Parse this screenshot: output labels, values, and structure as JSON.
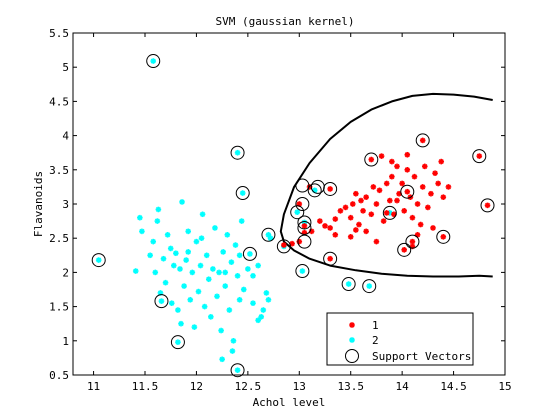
{
  "chart_data": {
    "type": "scatter",
    "title": "SVM (gaussian kernel)",
    "xlabel": "Achol level",
    "ylabel": "Flavanoids",
    "xlim": [
      10.8,
      15
    ],
    "ylim": [
      0.5,
      5.5
    ],
    "xticks": [
      "11",
      "11.5",
      "12",
      "12.5",
      "13",
      "13.5",
      "14",
      "14.5",
      "15"
    ],
    "yticks": [
      "0.5",
      "1",
      "1.5",
      "2",
      "2.5",
      "3",
      "3.5",
      "4",
      "4.5",
      "5",
      "5.5"
    ],
    "grid": false,
    "legend_position": "bottom-right",
    "legend": [
      "1",
      "2",
      "Support Vectors"
    ],
    "colors": {
      "class1": "#ff0000",
      "class2": "#00ffff",
      "boundary": "#000000"
    },
    "series": [
      {
        "name": "1",
        "marker": "star",
        "points": [
          [
            12.85,
            2.4
          ],
          [
            12.93,
            2.42
          ],
          [
            13.0,
            2.45
          ],
          [
            13.05,
            2.58
          ],
          [
            13.12,
            2.6
          ],
          [
            13.2,
            2.75
          ],
          [
            13.25,
            2.68
          ],
          [
            13.3,
            2.65
          ],
          [
            13.35,
            2.78
          ],
          [
            13.4,
            2.9
          ],
          [
            13.45,
            2.95
          ],
          [
            13.5,
            2.8
          ],
          [
            13.52,
            3.0
          ],
          [
            13.55,
            2.62
          ],
          [
            13.58,
            2.7
          ],
          [
            13.6,
            3.05
          ],
          [
            13.62,
            2.9
          ],
          [
            13.65,
            3.1
          ],
          [
            13.7,
            2.85
          ],
          [
            13.72,
            3.25
          ],
          [
            13.75,
            3.0
          ],
          [
            13.78,
            3.2
          ],
          [
            13.8,
            3.7
          ],
          [
            13.82,
            2.75
          ],
          [
            13.85,
            3.3
          ],
          [
            13.88,
            3.05
          ],
          [
            13.9,
            3.4
          ],
          [
            13.92,
            2.85
          ],
          [
            13.95,
            3.55
          ],
          [
            13.97,
            3.15
          ],
          [
            14.0,
            3.3
          ],
          [
            14.02,
            2.9
          ],
          [
            14.05,
            3.5
          ],
          [
            14.08,
            3.1
          ],
          [
            14.1,
            2.8
          ],
          [
            14.12,
            3.4
          ],
          [
            14.15,
            3.0
          ],
          [
            14.18,
            2.7
          ],
          [
            14.2,
            3.25
          ],
          [
            14.22,
            3.55
          ],
          [
            14.25,
            2.95
          ],
          [
            14.28,
            3.15
          ],
          [
            14.32,
            3.45
          ],
          [
            14.35,
            3.3
          ],
          [
            14.38,
            3.62
          ],
          [
            14.4,
            3.1
          ],
          [
            14.1,
            2.38
          ],
          [
            14.15,
            2.55
          ],
          [
            14.3,
            2.65
          ],
          [
            13.1,
            3.25
          ],
          [
            13.3,
            3.22
          ],
          [
            13.55,
            3.15
          ],
          [
            13.95,
            3.05
          ],
          [
            13.35,
            2.55
          ],
          [
            13.5,
            2.52
          ],
          [
            13.65,
            2.6
          ],
          [
            13.75,
            2.45
          ],
          [
            14.45,
            3.25
          ],
          [
            13.9,
            3.62
          ],
          [
            14.05,
            3.72
          ],
          [
            13.0,
            3.0
          ],
          [
            13.05,
            2.68
          ],
          [
            13.3,
            2.2
          ],
          [
            13.7,
            3.65
          ],
          [
            13.85,
            2.87
          ],
          [
            14.2,
            3.93
          ],
          [
            14.75,
            3.7
          ],
          [
            14.83,
            2.98
          ],
          [
            14.4,
            2.52
          ],
          [
            14.05,
            3.18
          ],
          [
            14.02,
            2.33
          ],
          [
            14.1,
            2.45
          ]
        ]
      },
      {
        "name": "2",
        "marker": "star",
        "points": [
          [
            11.41,
            2.02
          ],
          [
            11.45,
            2.8
          ],
          [
            11.47,
            2.6
          ],
          [
            11.55,
            2.25
          ],
          [
            11.58,
            2.45
          ],
          [
            11.6,
            2.0
          ],
          [
            11.62,
            2.75
          ],
          [
            11.63,
            2.92
          ],
          [
            11.65,
            1.7
          ],
          [
            11.68,
            2.2
          ],
          [
            11.7,
            1.85
          ],
          [
            11.72,
            2.55
          ],
          [
            11.75,
            2.35
          ],
          [
            11.76,
            1.55
          ],
          [
            11.78,
            2.1
          ],
          [
            11.8,
            2.28
          ],
          [
            11.82,
            1.45
          ],
          [
            11.84,
            2.05
          ],
          [
            11.85,
            1.25
          ],
          [
            11.86,
            3.03
          ],
          [
            11.88,
            1.8
          ],
          [
            11.9,
            2.18
          ],
          [
            11.92,
            2.6
          ],
          [
            11.94,
            1.6
          ],
          [
            11.96,
            2.0
          ],
          [
            11.98,
            1.2
          ],
          [
            12.0,
            2.45
          ],
          [
            12.02,
            1.72
          ],
          [
            12.04,
            2.1
          ],
          [
            12.06,
            2.85
          ],
          [
            12.08,
            1.5
          ],
          [
            12.1,
            2.25
          ],
          [
            12.12,
            1.9
          ],
          [
            12.14,
            1.35
          ],
          [
            12.16,
            2.05
          ],
          [
            12.18,
            2.65
          ],
          [
            12.2,
            1.65
          ],
          [
            12.22,
            2.0
          ],
          [
            12.24,
            1.15
          ],
          [
            12.26,
            2.3
          ],
          [
            12.28,
            1.8
          ],
          [
            12.3,
            2.55
          ],
          [
            12.32,
            1.45
          ],
          [
            12.34,
            2.15
          ],
          [
            12.36,
            1.0
          ],
          [
            12.38,
            2.4
          ],
          [
            12.4,
            1.95
          ],
          [
            12.42,
            1.6
          ],
          [
            12.44,
            2.75
          ],
          [
            12.46,
            1.75
          ],
          [
            12.5,
            2.05
          ],
          [
            12.55,
            1.55
          ],
          [
            12.6,
            1.3
          ],
          [
            12.63,
            1.35
          ],
          [
            12.65,
            1.45
          ],
          [
            12.68,
            1.7
          ],
          [
            12.7,
            1.6
          ],
          [
            12.72,
            2.5
          ],
          [
            12.28,
            2.0
          ],
          [
            12.05,
            2.5
          ],
          [
            11.92,
            2.3
          ],
          [
            12.25,
            0.73
          ],
          [
            12.35,
            0.85
          ],
          [
            12.42,
            2.25
          ],
          [
            12.55,
            1.95
          ],
          [
            12.6,
            2.1
          ],
          [
            11.05,
            2.18
          ],
          [
            11.58,
            5.09
          ],
          [
            11.66,
            1.58
          ],
          [
            11.82,
            0.98
          ],
          [
            12.4,
            0.57
          ],
          [
            12.4,
            3.75
          ],
          [
            12.45,
            3.16
          ],
          [
            12.52,
            2.27
          ],
          [
            12.7,
            2.55
          ],
          [
            12.85,
            2.38
          ],
          [
            12.98,
            2.88
          ],
          [
            13.03,
            2.02
          ],
          [
            13.05,
            2.73
          ],
          [
            13.48,
            1.83
          ],
          [
            13.68,
            1.8
          ],
          [
            13.88,
            2.87
          ],
          [
            13.15,
            3.2
          ]
        ]
      },
      {
        "name": "Support Vectors",
        "marker": "circle",
        "points": [
          [
            11.05,
            2.18
          ],
          [
            11.58,
            5.09
          ],
          [
            11.66,
            1.58
          ],
          [
            11.82,
            0.98
          ],
          [
            12.4,
            0.57
          ],
          [
            12.4,
            3.75
          ],
          [
            12.45,
            3.16
          ],
          [
            12.52,
            2.27
          ],
          [
            12.7,
            2.55
          ],
          [
            12.85,
            2.38
          ],
          [
            12.98,
            2.88
          ],
          [
            13.03,
            2.02
          ],
          [
            13.05,
            2.73
          ],
          [
            13.05,
            2.65
          ],
          [
            13.05,
            2.45
          ],
          [
            13.03,
            3.27
          ],
          [
            13.03,
            3.0
          ],
          [
            13.15,
            3.2
          ],
          [
            13.18,
            3.25
          ],
          [
            13.3,
            3.22
          ],
          [
            13.3,
            2.2
          ],
          [
            13.48,
            1.83
          ],
          [
            13.68,
            1.8
          ],
          [
            13.7,
            3.65
          ],
          [
            13.88,
            2.87
          ],
          [
            14.02,
            2.33
          ],
          [
            14.05,
            3.18
          ],
          [
            14.1,
            2.45
          ],
          [
            14.2,
            3.93
          ],
          [
            14.4,
            2.52
          ],
          [
            14.75,
            3.7
          ],
          [
            14.83,
            2.98
          ]
        ]
      }
    ],
    "boundary": [
      [
        14.88,
        4.52
      ],
      [
        14.7,
        4.57
      ],
      [
        14.5,
        4.6
      ],
      [
        14.3,
        4.61
      ],
      [
        14.1,
        4.58
      ],
      [
        13.9,
        4.5
      ],
      [
        13.7,
        4.38
      ],
      [
        13.5,
        4.2
      ],
      [
        13.3,
        3.95
      ],
      [
        13.1,
        3.6
      ],
      [
        12.95,
        3.25
      ],
      [
        12.85,
        2.85
      ],
      [
        12.82,
        2.6
      ],
      [
        12.85,
        2.45
      ],
      [
        12.95,
        2.32
      ],
      [
        13.1,
        2.2
      ],
      [
        13.3,
        2.1
      ],
      [
        13.55,
        2.03
      ],
      [
        13.8,
        1.98
      ],
      [
        14.05,
        1.95
      ],
      [
        14.3,
        1.94
      ],
      [
        14.55,
        1.94
      ],
      [
        14.75,
        1.95
      ],
      [
        14.88,
        1.94
      ]
    ]
  }
}
